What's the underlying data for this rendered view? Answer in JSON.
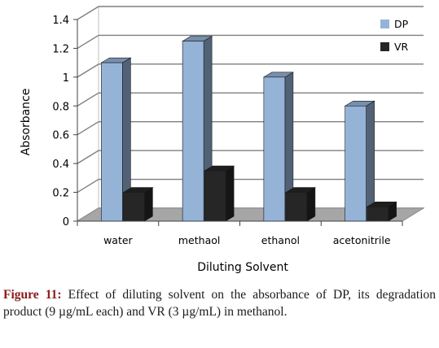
{
  "caption": {
    "label": "Figure 11:",
    "text": "Effect of diluting solvent on the absorbance of DP, its degradation product (9 µg/mL each) and VR (3 µg/mL) in methanol."
  },
  "chart_data": {
    "type": "bar",
    "style": "3d-clustered-column",
    "categories": [
      "water",
      "methaol",
      "ethanol",
      "acetonitrile"
    ],
    "series": [
      {
        "name": "DP",
        "values": [
          1.1,
          1.25,
          1.0,
          0.8
        ],
        "color": "#95B3D7"
      },
      {
        "name": "VR",
        "values": [
          0.2,
          0.35,
          0.2,
          0.1
        ],
        "color": "#262626"
      }
    ],
    "xlabel": "Diluting Solvent",
    "ylabel": "Absorbance",
    "ylim": [
      0,
      1.4
    ],
    "yticks": [
      "0",
      "0.2",
      "0.4",
      "0.6",
      "0.8",
      "1",
      "1.2",
      "1.4"
    ],
    "grid": true,
    "legend": "right"
  }
}
